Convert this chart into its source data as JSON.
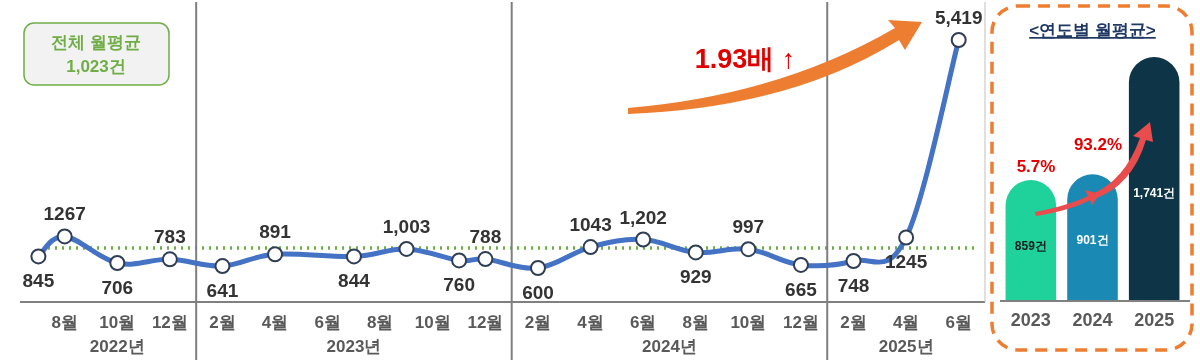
{
  "chart_data": [
    {
      "type": "line",
      "x": [
        "2022-07",
        "2022-08",
        "2022-10",
        "2022-12",
        "2023-02",
        "2023-04",
        "2023-07",
        "2023-09",
        "2023-11",
        "2023-12",
        "2024-02",
        "2024-04",
        "2024-06",
        "2024-08",
        "2024-10",
        "2024-12",
        "2025-02",
        "2025-04",
        "2025-06"
      ],
      "values": [
        845,
        1267,
        706,
        783,
        641,
        891,
        844,
        1003,
        760,
        788,
        600,
        1043,
        1202,
        929,
        997,
        665,
        748,
        1245,
        5419
      ],
      "value_labels": [
        "845",
        "1267",
        "706",
        "783",
        "641",
        "891",
        "844",
        "1,003",
        "760",
        "788",
        "600",
        "1043",
        "1,202",
        "929",
        "997",
        "665",
        "748",
        "1245",
        "5,419"
      ],
      "color": "#4472c4",
      "marker": "circle",
      "xlim": [
        "2022-06-10",
        "2025-07-01"
      ],
      "xticks": [
        {
          "value": "2022-08",
          "label": "8월"
        },
        {
          "value": "2022-10",
          "label": "10월"
        },
        {
          "value": "2022-12",
          "label": "12월"
        },
        {
          "value": "2023-02",
          "label": "2월"
        },
        {
          "value": "2023-04",
          "label": "4월"
        },
        {
          "value": "2023-06",
          "label": "6월"
        },
        {
          "value": "2023-08",
          "label": "8월"
        },
        {
          "value": "2023-10",
          "label": "10월"
        },
        {
          "value": "2023-12",
          "label": "12월"
        },
        {
          "value": "2024-02",
          "label": "2월"
        },
        {
          "value": "2024-04",
          "label": "4월"
        },
        {
          "value": "2024-06",
          "label": "6월"
        },
        {
          "value": "2024-08",
          "label": "8월"
        },
        {
          "value": "2024-10",
          "label": "10월"
        },
        {
          "value": "2024-12",
          "label": "12월"
        },
        {
          "value": "2025-02",
          "label": "2월"
        },
        {
          "value": "2025-04",
          "label": "4월"
        },
        {
          "value": "2025-06",
          "label": "6월"
        }
      ],
      "tick_labels": "x",
      "ref_lines": [
        {
          "axis": "y",
          "value": 1023,
          "label": "전체 월평균\n1,023건",
          "color": "#70ad47",
          "line_style": "dotted"
        },
        {
          "axis": "x",
          "value": "2023-01",
          "label": null,
          "color": "#7f7f7f",
          "line_style": "solid"
        },
        {
          "axis": "x",
          "value": "2024-01",
          "label": null,
          "color": "#7f7f7f",
          "line_style": "solid"
        },
        {
          "axis": "x",
          "value": "2025-01",
          "label": null,
          "color": "#7f7f7f",
          "line_style": "solid"
        }
      ],
      "annotations": [
        "1.93배 ↑",
        "2022년",
        "2023년",
        "2024년",
        "2025년"
      ]
    },
    {
      "type": "bar",
      "title": "<연도별 월평균>",
      "categories": [
        "2023",
        "2024",
        "2025"
      ],
      "values": [
        859,
        901,
        1741
      ],
      "value_labels": [
        "859건",
        "901건",
        "1,741건"
      ],
      "colors": [
        "#1fd19b",
        "#1a8ab5",
        "#0d3547"
      ],
      "tick_labels": "x",
      "annotations": [
        "5.7%",
        "93.2%"
      ]
    }
  ]
}
